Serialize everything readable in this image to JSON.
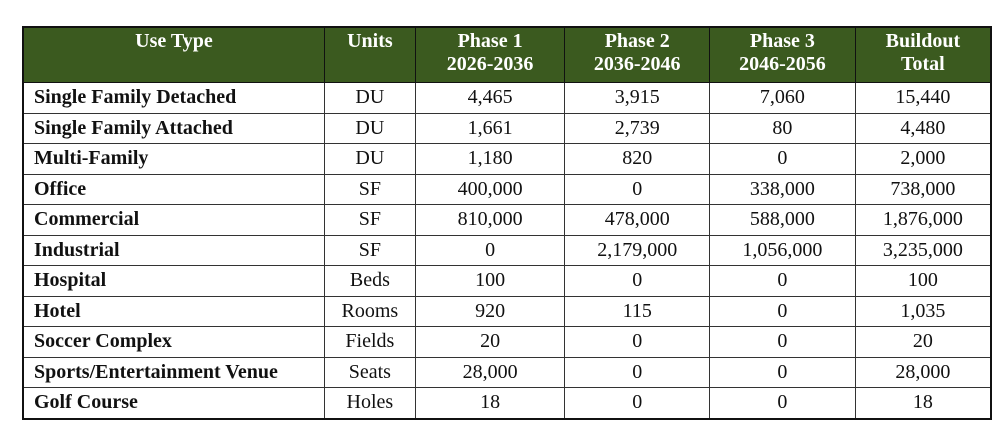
{
  "table": {
    "headers": [
      {
        "line1": "Use Type",
        "line2": ""
      },
      {
        "line1": "Units",
        "line2": ""
      },
      {
        "line1": "Phase 1",
        "line2": "2026-2036"
      },
      {
        "line1": "Phase 2",
        "line2": "2036-2046"
      },
      {
        "line1": "Phase 3",
        "line2": "2046-2056"
      },
      {
        "line1": "Buildout",
        "line2": "Total"
      }
    ],
    "rows": [
      [
        "Single Family Detached",
        "DU",
        "4,465",
        "3,915",
        "7,060",
        "15,440"
      ],
      [
        "Single Family Attached",
        "DU",
        "1,661",
        "2,739",
        "80",
        "4,480"
      ],
      [
        "Multi-Family",
        "DU",
        "1,180",
        "820",
        "0",
        "2,000"
      ],
      [
        "Office",
        "SF",
        "400,000",
        "0",
        "338,000",
        "738,000"
      ],
      [
        "Commercial",
        "SF",
        "810,000",
        "478,000",
        "588,000",
        "1,876,000"
      ],
      [
        "Industrial",
        "SF",
        "0",
        "2,179,000",
        "1,056,000",
        "3,235,000"
      ],
      [
        "Hospital",
        "Beds",
        "100",
        "0",
        "0",
        "100"
      ],
      [
        "Hotel",
        "Rooms",
        "920",
        "115",
        "0",
        "1,035"
      ],
      [
        "Soccer Complex",
        "Fields",
        "20",
        "0",
        "0",
        "20"
      ],
      [
        "Sports/Entertainment Venue",
        "Seats",
        "28,000",
        "0",
        "0",
        "28,000"
      ],
      [
        "Golf Course",
        "Holes",
        "18",
        "0",
        "0",
        "18"
      ]
    ]
  },
  "colors": {
    "header_bg": "#3b5a1f",
    "header_text": "#ffffff"
  }
}
